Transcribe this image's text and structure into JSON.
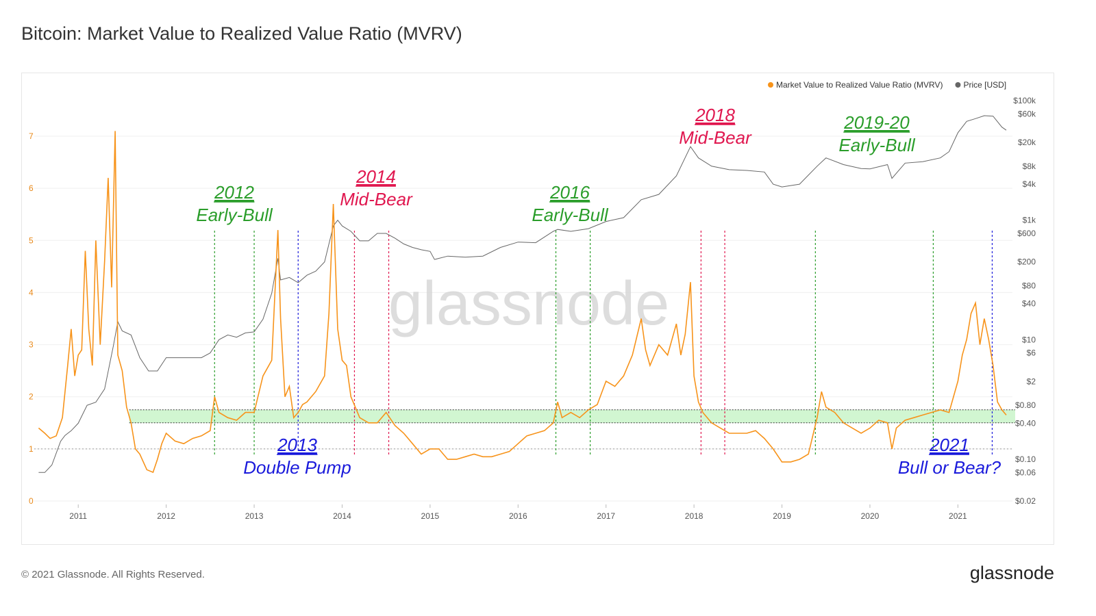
{
  "page": {
    "title": "Bitcoin: Market Value to Realized Value Ratio (MVRV)",
    "footer_copyright": "© 2021 Glassnode. All Rights Reserved.",
    "footer_logo": "glassnode",
    "watermark": "glassnode"
  },
  "chart_data": {
    "type": "line",
    "title": "Bitcoin: Market Value to Realized Value Ratio (MVRV)",
    "legend": {
      "placement": "top-right",
      "entries": [
        {
          "name": "Market Value to Realized Value Ratio (MVRV)",
          "color": "#f7931a"
        },
        {
          "name": "Price [USD]",
          "color": "#666666"
        }
      ]
    },
    "x_ticks": [
      "2011",
      "2012",
      "2013",
      "2014",
      "2015",
      "2016",
      "2017",
      "2018",
      "2019",
      "2020",
      "2021"
    ],
    "y_left": {
      "ticks": [
        "0",
        "1",
        "2",
        "3",
        "4",
        "5",
        "6",
        "7"
      ],
      "range": [
        0,
        7.6
      ],
      "color": "#e8891a"
    },
    "y_right": {
      "scale": "log",
      "ticks": [
        {
          "label": "$100k",
          "value": 100000
        },
        {
          "label": "$60k",
          "value": 60000
        },
        {
          "label": "$20k",
          "value": 20000
        },
        {
          "label": "$8k",
          "value": 8000
        },
        {
          "label": "$4k",
          "value": 4000
        },
        {
          "label": "$1k",
          "value": 1000
        },
        {
          "label": "$600",
          "value": 600
        },
        {
          "label": "$200",
          "value": 200
        },
        {
          "label": "$80",
          "value": 80
        },
        {
          "label": "$40",
          "value": 40
        },
        {
          "label": "$10",
          "value": 10
        },
        {
          "label": "$6",
          "value": 6
        },
        {
          "label": "$2",
          "value": 2
        },
        {
          "label": "$0.80",
          "value": 0.8
        },
        {
          "label": "$0.40",
          "value": 0.4
        },
        {
          "label": "$0.10",
          "value": 0.1
        },
        {
          "label": "$0.06",
          "value": 0.06
        },
        {
          "label": "$0.02",
          "value": 0.02
        }
      ]
    },
    "band": {
      "low": 1.5,
      "high": 1.75,
      "color": "#ccf5cc"
    },
    "reference_line": 1.0,
    "series": [
      {
        "name": "Market Value to Realized Value Ratio (MVRV)",
        "color": "#f7931a",
        "x": [
          2010.55,
          2010.62,
          2010.68,
          2010.75,
          2010.82,
          2010.88,
          2010.92,
          2010.96,
          2011.0,
          2011.04,
          2011.08,
          2011.12,
          2011.16,
          2011.2,
          2011.25,
          2011.3,
          2011.34,
          2011.38,
          2011.42,
          2011.45,
          2011.5,
          2011.55,
          2011.6,
          2011.65,
          2011.7,
          2011.78,
          2011.85,
          2011.9,
          2011.95,
          2012.0,
          2012.1,
          2012.2,
          2012.3,
          2012.4,
          2012.5,
          2012.55,
          2012.6,
          2012.7,
          2012.8,
          2012.9,
          2013.0,
          2013.1,
          2013.2,
          2013.27,
          2013.3,
          2013.35,
          2013.4,
          2013.45,
          2013.5,
          2013.55,
          2013.6,
          2013.7,
          2013.8,
          2013.85,
          2013.9,
          2013.95,
          2014.0,
          2014.05,
          2014.1,
          2014.2,
          2014.3,
          2014.4,
          2014.5,
          2014.6,
          2014.7,
          2014.8,
          2014.9,
          2015.0,
          2015.1,
          2015.2,
          2015.3,
          2015.4,
          2015.5,
          2015.6,
          2015.7,
          2015.8,
          2015.9,
          2016.0,
          2016.1,
          2016.2,
          2016.3,
          2016.4,
          2016.45,
          2016.5,
          2016.6,
          2016.7,
          2016.8,
          2016.9,
          2017.0,
          2017.1,
          2017.2,
          2017.3,
          2017.4,
          2017.45,
          2017.5,
          2017.6,
          2017.7,
          2017.8,
          2017.85,
          2017.9,
          2017.96,
          2018.0,
          2018.05,
          2018.1,
          2018.2,
          2018.3,
          2018.4,
          2018.5,
          2018.6,
          2018.7,
          2018.8,
          2018.9,
          2019.0,
          2019.1,
          2019.2,
          2019.3,
          2019.4,
          2019.45,
          2019.5,
          2019.6,
          2019.7,
          2019.8,
          2019.9,
          2020.0,
          2020.1,
          2020.2,
          2020.25,
          2020.3,
          2020.4,
          2020.5,
          2020.6,
          2020.7,
          2020.8,
          2020.9,
          2021.0,
          2021.05,
          2021.1,
          2021.15,
          2021.2,
          2021.25,
          2021.3,
          2021.35,
          2021.4,
          2021.45,
          2021.5,
          2021.55
        ],
        "y": [
          1.4,
          1.3,
          1.2,
          1.25,
          1.6,
          2.6,
          3.3,
          2.4,
          2.8,
          2.9,
          4.8,
          3.3,
          2.6,
          5.0,
          3.0,
          4.6,
          6.2,
          4.1,
          7.1,
          2.8,
          2.5,
          1.8,
          1.5,
          1.0,
          0.9,
          0.6,
          0.55,
          0.8,
          1.1,
          1.3,
          1.15,
          1.1,
          1.2,
          1.25,
          1.35,
          2.0,
          1.7,
          1.6,
          1.55,
          1.7,
          1.7,
          2.4,
          2.7,
          5.2,
          3.5,
          2.0,
          2.2,
          1.6,
          1.7,
          1.85,
          1.9,
          2.1,
          2.4,
          3.6,
          5.7,
          3.3,
          2.7,
          2.6,
          2.0,
          1.6,
          1.5,
          1.5,
          1.7,
          1.45,
          1.3,
          1.1,
          0.9,
          1.0,
          1.0,
          0.8,
          0.8,
          0.85,
          0.9,
          0.85,
          0.85,
          0.9,
          0.95,
          1.1,
          1.25,
          1.3,
          1.35,
          1.5,
          1.9,
          1.6,
          1.7,
          1.6,
          1.75,
          1.85,
          2.3,
          2.2,
          2.4,
          2.8,
          3.5,
          2.9,
          2.6,
          3.0,
          2.8,
          3.4,
          2.8,
          3.2,
          4.2,
          2.4,
          1.9,
          1.7,
          1.5,
          1.4,
          1.3,
          1.3,
          1.3,
          1.35,
          1.2,
          1.0,
          0.75,
          0.75,
          0.8,
          0.9,
          1.6,
          2.1,
          1.8,
          1.7,
          1.5,
          1.4,
          1.3,
          1.4,
          1.55,
          1.5,
          1.0,
          1.4,
          1.55,
          1.6,
          1.65,
          1.7,
          1.75,
          1.7,
          2.3,
          2.8,
          3.1,
          3.6,
          3.8,
          3.0,
          3.5,
          3.1,
          2.6,
          1.9,
          1.75,
          1.65
        ]
      },
      {
        "name": "Price [USD]",
        "color": "#666666",
        "x": [
          2010.55,
          2010.62,
          2010.7,
          2010.8,
          2010.85,
          2010.92,
          2011.0,
          2011.1,
          2011.2,
          2011.3,
          2011.4,
          2011.45,
          2011.5,
          2011.6,
          2011.7,
          2011.8,
          2011.9,
          2012.0,
          2012.1,
          2012.2,
          2012.3,
          2012.4,
          2012.5,
          2012.6,
          2012.7,
          2012.8,
          2012.9,
          2013.0,
          2013.1,
          2013.2,
          2013.27,
          2013.3,
          2013.4,
          2013.5,
          2013.6,
          2013.7,
          2013.8,
          2013.9,
          2013.95,
          2014.0,
          2014.1,
          2014.2,
          2014.3,
          2014.4,
          2014.5,
          2014.6,
          2014.7,
          2014.8,
          2014.9,
          2015.0,
          2015.05,
          2015.2,
          2015.4,
          2015.6,
          2015.8,
          2016.0,
          2016.2,
          2016.4,
          2016.45,
          2016.6,
          2016.8,
          2017.0,
          2017.2,
          2017.4,
          2017.6,
          2017.8,
          2017.96,
          2018.05,
          2018.2,
          2018.4,
          2018.6,
          2018.8,
          2018.9,
          2019.0,
          2019.2,
          2019.4,
          2019.5,
          2019.7,
          2019.9,
          2020.0,
          2020.2,
          2020.25,
          2020.4,
          2020.6,
          2020.8,
          2020.9,
          2021.0,
          2021.1,
          2021.2,
          2021.3,
          2021.4,
          2021.5,
          2021.55
        ],
        "y": [
          0.06,
          0.06,
          0.08,
          0.2,
          0.25,
          0.3,
          0.4,
          0.8,
          0.9,
          1.5,
          8.0,
          20.0,
          14.0,
          12.0,
          5.0,
          3.0,
          3.0,
          5.0,
          5.0,
          5.0,
          5.0,
          5.0,
          6.0,
          10.0,
          12.0,
          11.0,
          13.0,
          13.5,
          22.0,
          60.0,
          230.0,
          100.0,
          110.0,
          90.0,
          120.0,
          140.0,
          200.0,
          800.0,
          1000.0,
          800.0,
          650.0,
          450.0,
          450.0,
          600.0,
          600.0,
          500.0,
          400.0,
          350.0,
          320.0,
          300.0,
          220.0,
          250.0,
          240.0,
          250.0,
          350.0,
          430.0,
          420.0,
          650.0,
          700.0,
          650.0,
          720.0,
          950.0,
          1100.0,
          2200.0,
          2700.0,
          5500.0,
          17000.0,
          11000.0,
          8000.0,
          7000.0,
          6800.0,
          6400.0,
          4000.0,
          3600.0,
          4000.0,
          8000.0,
          11000.0,
          8500.0,
          7300.0,
          7200.0,
          8500.0,
          5000.0,
          9000.0,
          9500.0,
          11000.0,
          14000.0,
          29000.0,
          45000.0,
          50000.0,
          56000.0,
          55000.0,
          36000.0,
          32000.0
        ]
      }
    ],
    "annotations": [
      {
        "year": "2012",
        "label": "Early-Bull",
        "color": "#2a9d2a",
        "x": 2012.62
      },
      {
        "year": "2013",
        "label": "Double Pump",
        "color": "#1a1adb",
        "x": 2013.5
      },
      {
        "year": "2014",
        "label": "Mid-Bear",
        "color": "#e0174f",
        "x": 2014.4
      },
      {
        "year": "2016",
        "label": "Early-Bull",
        "color": "#2a9d2a",
        "x": 2016.6
      },
      {
        "year": "2018",
        "label": "Mid-Bear",
        "color": "#e0174f",
        "x": 2018.22
      },
      {
        "year": "2019-20",
        "label": "Early-Bull",
        "color": "#2a9d2a",
        "x": 2020.05
      },
      {
        "year": "2021",
        "label": "Bull or Bear?",
        "color": "#1a1adb",
        "x": 2021.3
      }
    ],
    "markers": [
      {
        "x": 2012.55,
        "color": "#2a9d2a"
      },
      {
        "x": 2013.0,
        "color": "#2a9d2a"
      },
      {
        "x": 2013.5,
        "color": "#1a1adb"
      },
      {
        "x": 2014.14,
        "color": "#e0174f"
      },
      {
        "x": 2014.53,
        "color": "#e0174f"
      },
      {
        "x": 2016.43,
        "color": "#2a9d2a"
      },
      {
        "x": 2016.82,
        "color": "#2a9d2a"
      },
      {
        "x": 2018.08,
        "color": "#e0174f"
      },
      {
        "x": 2018.35,
        "color": "#e0174f"
      },
      {
        "x": 2019.38,
        "color": "#2a9d2a"
      },
      {
        "x": 2020.72,
        "color": "#2a9d2a"
      },
      {
        "x": 2021.39,
        "color": "#1a1adb"
      }
    ]
  }
}
